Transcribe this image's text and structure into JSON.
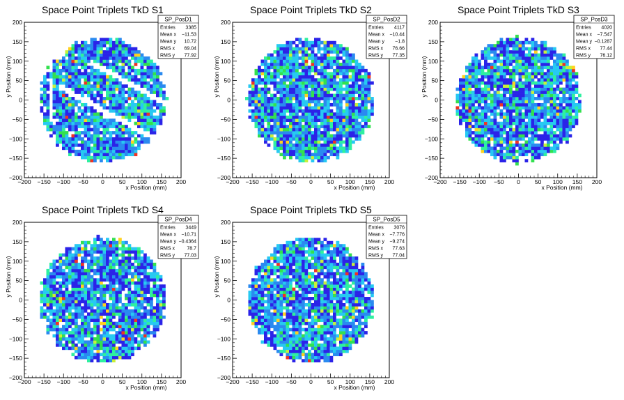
{
  "chart_data": [
    {
      "type": "heatmap",
      "title": "Space Point Triplets TkD S1",
      "xlabel": "x Position (mm)",
      "ylabel": "y Position (mm)",
      "xlim": [
        -200,
        200
      ],
      "ylim": [
        -200,
        200
      ],
      "xticks": [
        -200,
        -150,
        -100,
        -50,
        0,
        50,
        100,
        150,
        200
      ],
      "yticks": [
        -200,
        -150,
        -100,
        -50,
        0,
        50,
        100,
        150,
        200
      ],
      "pattern": "disc with two diagonal gaps",
      "stats": {
        "name": "SP_PosD1",
        "rows": [
          {
            "label": "Entries",
            "value": "3385"
          },
          {
            "label": "Mean x",
            "value": "-11.53"
          },
          {
            "label": "Mean y",
            "value": "10.72"
          },
          {
            "label": "RMS x",
            "value": "69.04"
          },
          {
            "label": "RMS y",
            "value": "77.92"
          }
        ]
      }
    },
    {
      "type": "heatmap",
      "title": "Space Point Triplets TkD S2",
      "xlabel": "x Position (mm)",
      "ylabel": "y Position (mm)",
      "xlim": [
        -200,
        200
      ],
      "ylim": [
        -200,
        200
      ],
      "xticks": [
        -200,
        -150,
        -100,
        -50,
        0,
        50,
        100,
        150,
        200
      ],
      "yticks": [
        -200,
        -150,
        -100,
        -50,
        0,
        50,
        100,
        150,
        200
      ],
      "pattern": "full disc",
      "stats": {
        "name": "SP_PosD2",
        "rows": [
          {
            "label": "Entries",
            "value": "4117"
          },
          {
            "label": "Mean x",
            "value": "-10.44"
          },
          {
            "label": "Mean y",
            "value": "-1.8"
          },
          {
            "label": "RMS x",
            "value": "76.66"
          },
          {
            "label": "RMS y",
            "value": "77.35"
          }
        ]
      }
    },
    {
      "type": "heatmap",
      "title": "Space Point Triplets TkD S3",
      "xlabel": "x Position (mm)",
      "ylabel": "y Position (mm)",
      "xlim": [
        -200,
        200
      ],
      "ylim": [
        -200,
        200
      ],
      "xticks": [
        -200,
        -150,
        -100,
        -50,
        0,
        50,
        100,
        150,
        200
      ],
      "yticks": [
        -200,
        -150,
        -100,
        -50,
        0,
        50,
        100,
        150,
        200
      ],
      "pattern": "full disc",
      "stats": {
        "name": "SP_PosD3",
        "rows": [
          {
            "label": "Entries",
            "value": "4020"
          },
          {
            "label": "Mean x",
            "value": "-7.547"
          },
          {
            "label": "Mean y",
            "value": "-0.1287"
          },
          {
            "label": "RMS x",
            "value": "77.44"
          },
          {
            "label": "RMS y",
            "value": "76.12"
          }
        ]
      }
    },
    {
      "type": "heatmap",
      "title": "Space Point Triplets TkD S4",
      "xlabel": "x Position (mm)",
      "ylabel": "y Position (mm)",
      "xlim": [
        -200,
        200
      ],
      "ylim": [
        -200,
        200
      ],
      "xticks": [
        -200,
        -150,
        -100,
        -50,
        0,
        50,
        100,
        150,
        200
      ],
      "yticks": [
        -200,
        -150,
        -100,
        -50,
        0,
        50,
        100,
        150,
        200
      ],
      "pattern": "full disc",
      "stats": {
        "name": "SP_PosD4",
        "rows": [
          {
            "label": "Entries",
            "value": "3449"
          },
          {
            "label": "Mean x",
            "value": "-10.71"
          },
          {
            "label": "Mean y",
            "value": "-0.4364"
          },
          {
            "label": "RMS x",
            "value": "78.7"
          },
          {
            "label": "RMS y",
            "value": "77.03"
          }
        ]
      }
    },
    {
      "type": "heatmap",
      "title": "Space Point Triplets TkD S5",
      "xlabel": "x Position (mm)",
      "ylabel": "y Position (mm)",
      "xlim": [
        -200,
        200
      ],
      "ylim": [
        -200,
        200
      ],
      "xticks": [
        -200,
        -150,
        -100,
        -50,
        0,
        50,
        100,
        150,
        200
      ],
      "yticks": [
        -200,
        -150,
        -100,
        -50,
        0,
        50,
        100,
        150,
        200
      ],
      "pattern": "full disc",
      "stats": {
        "name": "SP_PosD5",
        "rows": [
          {
            "label": "Entries",
            "value": "3076"
          },
          {
            "label": "Mean x",
            "value": "-7.776"
          },
          {
            "label": "Mean y",
            "value": "-9.274"
          },
          {
            "label": "RMS x",
            "value": "77.63"
          },
          {
            "label": "RMS y",
            "value": "77.04"
          }
        ]
      }
    }
  ],
  "colors": {
    "palette": [
      "#2b23e8",
      "#2a8af0",
      "#27c9f2",
      "#2ef0a0",
      "#33e04f",
      "#c8f03a",
      "#ffd11f",
      "#f03224"
    ],
    "frame": "#000000",
    "background": "#ffffff"
  }
}
